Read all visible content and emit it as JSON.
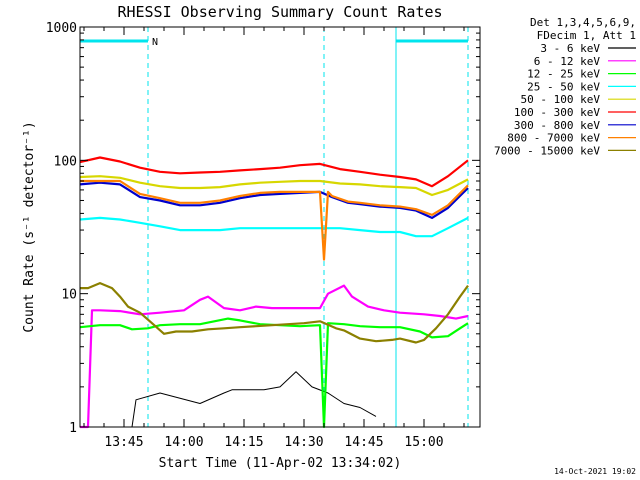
{
  "chart_data": {
    "type": "line",
    "title": "RHESSI Observing Summary Count Rates",
    "xlabel": "Start Time (11-Apr-02 13:34:02)",
    "ylabel": "Count Rate (s⁻¹ detector⁻¹)",
    "y_scale": "log",
    "ylim": [
      1,
      1000
    ],
    "xlim": [
      0,
      100
    ],
    "x_unit": "minutes since 13:34:02",
    "y_ticks": [
      {
        "value": 1,
        "label": "1"
      },
      {
        "value": 10,
        "label": "10"
      },
      {
        "value": 100,
        "label": "100"
      },
      {
        "value": 1000,
        "label": "1000"
      }
    ],
    "x_ticks": [
      {
        "value": 11,
        "label": "13:45"
      },
      {
        "value": 26,
        "label": "14:00"
      },
      {
        "value": 41,
        "label": "14:15"
      },
      {
        "value": 56,
        "label": "14:30"
      },
      {
        "value": 71,
        "label": "14:45"
      },
      {
        "value": 86,
        "label": "15:00"
      }
    ],
    "legend_header": [
      "Det 1,3,4,5,6,9,",
      "FDecim 1, Att 1"
    ],
    "legend_position": "right",
    "footer": "14-Oct-2021 19:02",
    "night_marks": [
      {
        "start": 0,
        "end": 17,
        "label": "N"
      },
      {
        "start": 79,
        "end": 97,
        "label": ""
      }
    ],
    "saa_lines": [
      17,
      61,
      79,
      97
    ],
    "series": [
      {
        "name": "3 - 6 keV",
        "color": "#000000",
        "x": [
          0,
          13,
          14,
          20,
          30,
          36,
          38,
          46,
          50,
          54,
          58,
          62,
          66,
          70,
          74
        ],
        "y": [
          1.0,
          1.0,
          1.6,
          1.8,
          1.5,
          1.8,
          1.9,
          1.9,
          2.0,
          2.6,
          2.0,
          1.8,
          1.5,
          1.4,
          1.2
        ]
      },
      {
        "name": "6 - 12 keV",
        "color": "#ff00ff",
        "x": [
          0,
          2,
          3,
          5,
          10,
          15,
          20,
          26,
          30,
          32,
          36,
          40,
          44,
          48,
          54,
          60,
          62,
          66,
          68,
          72,
          76,
          80,
          86,
          90,
          94,
          97
        ],
        "y": [
          1.0,
          1.0,
          7.5,
          7.5,
          7.4,
          7.0,
          7.2,
          7.5,
          9.0,
          9.5,
          7.8,
          7.5,
          8.0,
          7.8,
          7.8,
          7.8,
          10.0,
          11.5,
          9.5,
          8.0,
          7.5,
          7.2,
          7.0,
          6.8,
          6.5,
          6.8
        ]
      },
      {
        "name": "12 - 25 keV",
        "color": "#00ff00",
        "x": [
          0,
          5,
          10,
          13,
          17,
          20,
          25,
          30,
          37,
          40,
          45,
          50,
          55,
          60,
          61,
          62,
          66,
          70,
          75,
          80,
          85,
          88,
          92,
          95,
          97
        ],
        "y": [
          5.6,
          5.8,
          5.8,
          5.4,
          5.5,
          5.8,
          5.9,
          5.9,
          6.5,
          6.3,
          5.9,
          5.8,
          5.7,
          5.8,
          1.0,
          6.0,
          5.9,
          5.7,
          5.6,
          5.6,
          5.2,
          4.7,
          4.8,
          5.5,
          6.0
        ]
      },
      {
        "name": "25 - 50 keV",
        "color": "#00ffff",
        "x": [
          0,
          5,
          10,
          15,
          20,
          25,
          30,
          35,
          40,
          45,
          50,
          55,
          60,
          65,
          70,
          75,
          80,
          84,
          88,
          92,
          97
        ],
        "y": [
          36,
          37,
          36,
          34,
          32,
          30,
          30,
          30,
          31,
          31,
          31,
          31,
          31,
          31,
          30,
          29,
          29,
          27,
          27,
          31,
          37
        ]
      },
      {
        "name": "50 - 100 keV",
        "color": "#d7d700",
        "x": [
          0,
          5,
          10,
          15,
          20,
          25,
          30,
          35,
          40,
          45,
          50,
          55,
          60,
          65,
          70,
          75,
          80,
          84,
          88,
          92,
          97
        ],
        "y": [
          75,
          76,
          74,
          68,
          64,
          62,
          62,
          63,
          66,
          68,
          69,
          70,
          70,
          67,
          66,
          64,
          63,
          62,
          55,
          60,
          72
        ]
      },
      {
        "name": "100 - 300 keV",
        "color": "#ff0000",
        "x": [
          0,
          5,
          10,
          15,
          20,
          25,
          30,
          35,
          40,
          45,
          50,
          55,
          60,
          65,
          70,
          75,
          80,
          84,
          88,
          92,
          97
        ],
        "y": [
          97,
          105,
          98,
          88,
          82,
          80,
          81,
          82,
          84,
          86,
          88,
          92,
          94,
          86,
          82,
          78,
          75,
          72,
          64,
          76,
          100
        ]
      },
      {
        "name": "300 - 800 keV",
        "color": "#0000cc",
        "x": [
          0,
          5,
          10,
          15,
          20,
          25,
          30,
          35,
          40,
          45,
          50,
          55,
          60,
          63,
          67,
          70,
          75,
          80,
          84,
          88,
          92,
          97
        ],
        "y": [
          66,
          68,
          66,
          53,
          50,
          46,
          46,
          48,
          52,
          55,
          56,
          57,
          58,
          53,
          48,
          47,
          45,
          44,
          42,
          37,
          44,
          62
        ]
      },
      {
        "name": "800 - 7000 keV",
        "color": "#ff8000",
        "x": [
          0,
          5,
          10,
          15,
          20,
          25,
          30,
          35,
          40,
          45,
          50,
          55,
          60,
          61,
          62,
          63,
          67,
          70,
          75,
          80,
          84,
          88,
          92,
          97
        ],
        "y": [
          70,
          70,
          70,
          56,
          52,
          48,
          48,
          50,
          54,
          57,
          58,
          58,
          58,
          18,
          58,
          54,
          49,
          48,
          46,
          45,
          43,
          39,
          46,
          65
        ]
      },
      {
        "name": "7000 - 15000 keV",
        "color": "#8b8000",
        "x": [
          0,
          2,
          5,
          8,
          10,
          12,
          15,
          18,
          21,
          24,
          28,
          32,
          36,
          40,
          44,
          48,
          52,
          56,
          60,
          64,
          66,
          70,
          74,
          78,
          80,
          84,
          86,
          89,
          92,
          95,
          97
        ],
        "y": [
          11,
          11,
          12,
          11,
          9.5,
          8.0,
          7.2,
          6.0,
          5.0,
          5.2,
          5.2,
          5.4,
          5.5,
          5.6,
          5.7,
          5.8,
          5.9,
          6.0,
          6.2,
          5.5,
          5.3,
          4.6,
          4.4,
          4.5,
          4.6,
          4.3,
          4.5,
          5.5,
          7.0,
          9.5,
          11.5
        ]
      }
    ]
  }
}
